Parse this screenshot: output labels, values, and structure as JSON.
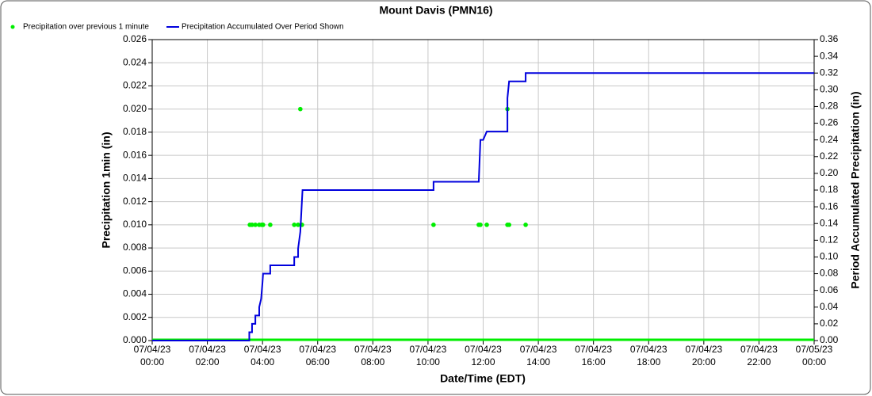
{
  "chart_data": {
    "type": "scatter-line",
    "title": "Mount Davis (PMN16)",
    "xlabel": "Date/Time (EDT)",
    "ylabel": "Precipitation 1min (in)",
    "y2label": "Period Accumulated Precipitation (in)",
    "xlim": [
      0,
      24
    ],
    "xticks": [
      {
        "value": 0,
        "label": "07/04/23 00:00"
      },
      {
        "value": 2,
        "label": "07/04/23 02:00"
      },
      {
        "value": 4,
        "label": "07/04/23 04:00"
      },
      {
        "value": 6,
        "label": "07/04/23 06:00"
      },
      {
        "value": 8,
        "label": "07/04/23 08:00"
      },
      {
        "value": 10,
        "label": "07/04/23 10:00"
      },
      {
        "value": 12,
        "label": "07/04/23 12:00"
      },
      {
        "value": 14,
        "label": "07/04/23 14:00"
      },
      {
        "value": 16,
        "label": "07/04/23 16:00"
      },
      {
        "value": 18,
        "label": "07/04/23 18:00"
      },
      {
        "value": 20,
        "label": "07/04/23 20:00"
      },
      {
        "value": 22,
        "label": "07/04/23 22:00"
      },
      {
        "value": 24,
        "label": "07/05/23 00:00"
      }
    ],
    "ylim": [
      0,
      0.026
    ],
    "yticks": [
      {
        "value": 0,
        "label": "0.000"
      },
      {
        "value": 0.002,
        "label": "0.002"
      },
      {
        "value": 0.004,
        "label": "0.004"
      },
      {
        "value": 0.006,
        "label": "0.006"
      },
      {
        "value": 0.008,
        "label": "0.008"
      },
      {
        "value": 0.01,
        "label": "0.010"
      },
      {
        "value": 0.012,
        "label": "0.012"
      },
      {
        "value": 0.014,
        "label": "0.014"
      },
      {
        "value": 0.016,
        "label": "0.016"
      },
      {
        "value": 0.018,
        "label": "0.018"
      },
      {
        "value": 0.02,
        "label": "0.020"
      },
      {
        "value": 0.022,
        "label": "0.022"
      },
      {
        "value": 0.024,
        "label": "0.024"
      },
      {
        "value": 0.026,
        "label": "0.026"
      }
    ],
    "y2lim": [
      0,
      0.36
    ],
    "y2ticks": [
      {
        "value": 0,
        "label": "0.00"
      },
      {
        "value": 0.02,
        "label": "0.02"
      },
      {
        "value": 0.04,
        "label": "0.04"
      },
      {
        "value": 0.06,
        "label": "0.06"
      },
      {
        "value": 0.08,
        "label": "0.08"
      },
      {
        "value": 0.1,
        "label": "0.10"
      },
      {
        "value": 0.12,
        "label": "0.12"
      },
      {
        "value": 0.14,
        "label": "0.14"
      },
      {
        "value": 0.16,
        "label": "0.16"
      },
      {
        "value": 0.18,
        "label": "0.18"
      },
      {
        "value": 0.2,
        "label": "0.20"
      },
      {
        "value": 0.22,
        "label": "0.22"
      },
      {
        "value": 0.24,
        "label": "0.24"
      },
      {
        "value": 0.26,
        "label": "0.26"
      },
      {
        "value": 0.28,
        "label": "0.28"
      },
      {
        "value": 0.3,
        "label": "0.30"
      },
      {
        "value": 0.32,
        "label": "0.32"
      },
      {
        "value": 0.34,
        "label": "0.34"
      },
      {
        "value": 0.36,
        "label": "0.36"
      }
    ],
    "grid": true,
    "legend": "top-left",
    "series": [
      {
        "name": "Precipitation over previous 1 minute",
        "color": "#00ee00",
        "kind": "scatter",
        "x": [
          3.54,
          3.62,
          3.74,
          3.88,
          3.97,
          4.02,
          4.28,
          5.15,
          5.29,
          5.37,
          5.43,
          10.2,
          11.84,
          11.9,
          12.13,
          12.88,
          12.88,
          12.94,
          13.54
        ],
        "values": [
          0.01,
          0.01,
          0.01,
          0.01,
          0.01,
          0.01,
          0.01,
          0.01,
          0.01,
          0.02,
          0.01,
          0.01,
          0.01,
          0.01,
          0.01,
          0.02,
          0.01,
          0.01,
          0.01
        ]
      },
      {
        "name": "Precipitation Accumulated Over Period Shown",
        "color": "#0000dd",
        "kind": "line",
        "axis": "y2",
        "x": [
          0,
          3.52,
          3.52,
          3.62,
          3.62,
          3.74,
          3.74,
          3.88,
          3.88,
          3.95,
          4.0,
          4.02,
          4.28,
          4.28,
          5.15,
          5.15,
          5.29,
          5.29,
          5.37,
          5.45,
          10.2,
          10.2,
          11.84,
          11.9,
          12.0,
          12.13,
          12.88,
          12.88,
          12.94,
          13.54,
          13.54,
          24
        ],
        "values": [
          0,
          0,
          0.01,
          0.01,
          0.02,
          0.02,
          0.03,
          0.03,
          0.04,
          0.05,
          0.07,
          0.08,
          0.08,
          0.09,
          0.09,
          0.1,
          0.1,
          0.11,
          0.13,
          0.18,
          0.18,
          0.19,
          0.19,
          0.24,
          0.24,
          0.25,
          0.25,
          0.29,
          0.31,
          0.31,
          0.32,
          0.32
        ]
      }
    ]
  }
}
